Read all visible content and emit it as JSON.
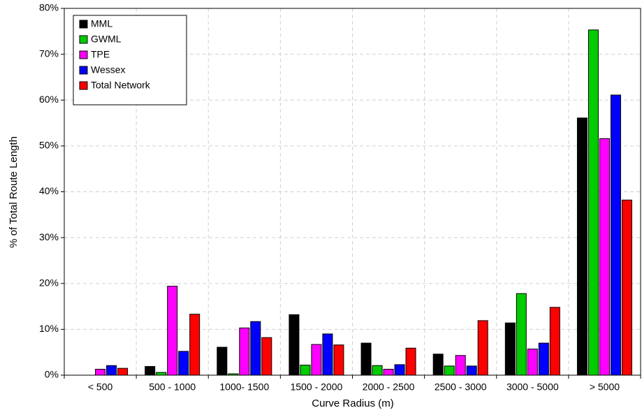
{
  "chart_data": {
    "type": "bar",
    "x_label": "Curve Radius (m)",
    "y_label": "% of Total Route Length",
    "categories": [
      "< 500",
      "500 - 1000",
      "1000- 1500",
      "1500 - 2000",
      "2000 - 2500",
      "2500 - 3000",
      "3000 - 5000",
      "> 5000"
    ],
    "series": [
      {
        "name": "MML",
        "color": "#000000",
        "values": [
          0,
          1.9,
          6.1,
          13.2,
          7.0,
          4.6,
          11.4,
          56.1
        ]
      },
      {
        "name": "GWML",
        "color": "#00cc00",
        "values": [
          0,
          0.6,
          0.3,
          2.2,
          2.1,
          2.0,
          17.8,
          75.3
        ]
      },
      {
        "name": "TPE",
        "color": "#ff00ff",
        "values": [
          1.3,
          19.4,
          10.3,
          6.7,
          1.3,
          4.3,
          5.7,
          51.6
        ]
      },
      {
        "name": "Wessex",
        "color": "#0000ff",
        "values": [
          2.1,
          5.2,
          11.7,
          9.0,
          2.3,
          2.0,
          7.0,
          61.1
        ]
      },
      {
        "name": "Total Network",
        "color": "#ff0000",
        "values": [
          1.5,
          13.3,
          8.2,
          6.6,
          5.9,
          11.9,
          14.8,
          38.2
        ]
      }
    ],
    "ylim": [
      0,
      80
    ],
    "yticks": [
      {
        "value": 0,
        "label": "0%"
      },
      {
        "value": 10,
        "label": "10%"
      },
      {
        "value": 20,
        "label": "20%"
      },
      {
        "value": 30,
        "label": "30%"
      },
      {
        "value": 40,
        "label": "40%"
      },
      {
        "value": 50,
        "label": "50%"
      },
      {
        "value": 60,
        "label": "60%"
      },
      {
        "value": 70,
        "label": "70%"
      },
      {
        "value": 80,
        "label": "80%"
      }
    ],
    "grid": true,
    "legend_position": "top-left"
  }
}
